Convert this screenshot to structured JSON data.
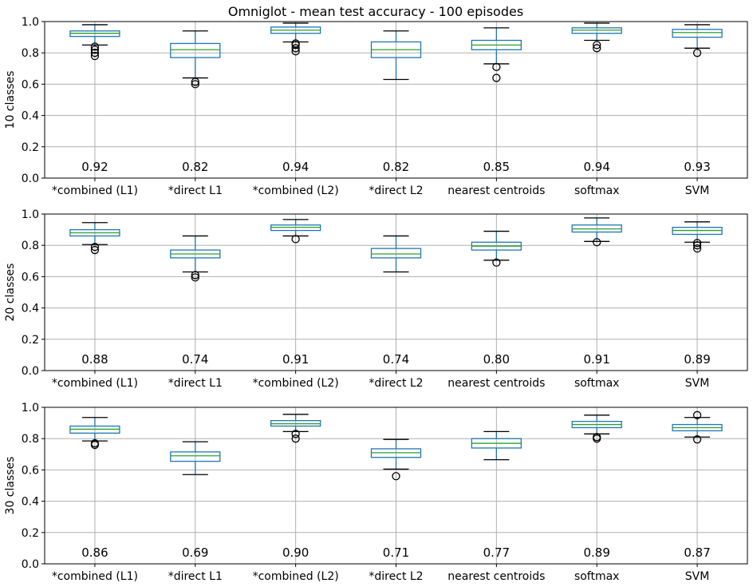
{
  "figure_title": "Omniglot - mean test accuracy - 100 episodes",
  "colors": {
    "box": "#1f77b4",
    "median": "#2ca02c",
    "grid": "#b0b0b0",
    "cap": "#000000",
    "flier": "#000000"
  },
  "chart_data": [
    {
      "type": "box",
      "ylabel": "10 classes",
      "ylim": [
        0.0,
        1.0
      ],
      "yticks": [
        "0.0",
        "0.2",
        "0.4",
        "0.6",
        "0.8",
        "1.0"
      ],
      "grid": true,
      "categories": [
        "*combined (L1)",
        "*direct L1",
        "*combined (L2)",
        "*direct L2",
        "nearest centroids",
        "softmax",
        "SVM"
      ],
      "means": [
        "0.92",
        "0.82",
        "0.94",
        "0.82",
        "0.85",
        "0.94",
        "0.93"
      ],
      "boxes": [
        {
          "whislo": 0.85,
          "q1": 0.905,
          "med": 0.925,
          "q3": 0.94,
          "whishi": 0.98,
          "fliers": [
            0.78,
            0.8,
            0.82,
            0.84
          ]
        },
        {
          "whislo": 0.64,
          "q1": 0.77,
          "med": 0.82,
          "q3": 0.86,
          "whishi": 0.94,
          "fliers": [
            0.6,
            0.615
          ]
        },
        {
          "whislo": 0.87,
          "q1": 0.925,
          "med": 0.945,
          "q3": 0.965,
          "whishi": 0.99,
          "fliers": [
            0.81,
            0.83,
            0.85,
            0.86
          ]
        },
        {
          "whislo": 0.63,
          "q1": 0.77,
          "med": 0.82,
          "q3": 0.87,
          "whishi": 0.94,
          "fliers": []
        },
        {
          "whislo": 0.73,
          "q1": 0.82,
          "med": 0.85,
          "q3": 0.88,
          "whishi": 0.96,
          "fliers": [
            0.64,
            0.71
          ]
        },
        {
          "whislo": 0.88,
          "q1": 0.925,
          "med": 0.945,
          "q3": 0.96,
          "whishi": 0.99,
          "fliers": [
            0.83,
            0.85
          ]
        },
        {
          "whislo": 0.83,
          "q1": 0.9,
          "med": 0.93,
          "q3": 0.95,
          "whishi": 0.98,
          "fliers": [
            0.8
          ]
        }
      ]
    },
    {
      "type": "box",
      "ylabel": "20 classes",
      "ylim": [
        0.0,
        1.0
      ],
      "yticks": [
        "0.0",
        "0.2",
        "0.4",
        "0.6",
        "0.8",
        "1.0"
      ],
      "grid": true,
      "categories": [
        "*combined (L1)",
        "*direct L1",
        "*combined (L2)",
        "*direct L2",
        "nearest centroids",
        "softmax",
        "SVM"
      ],
      "means": [
        "0.88",
        "0.74",
        "0.91",
        "0.74",
        "0.80",
        "0.91",
        "0.89"
      ],
      "boxes": [
        {
          "whislo": 0.805,
          "q1": 0.86,
          "med": 0.88,
          "q3": 0.9,
          "whishi": 0.945,
          "fliers": [
            0.77,
            0.79
          ]
        },
        {
          "whislo": 0.63,
          "q1": 0.72,
          "med": 0.745,
          "q3": 0.77,
          "whishi": 0.86,
          "fliers": [
            0.595,
            0.61
          ]
        },
        {
          "whislo": 0.86,
          "q1": 0.895,
          "med": 0.915,
          "q3": 0.93,
          "whishi": 0.965,
          "fliers": [
            0.84
          ]
        },
        {
          "whislo": 0.63,
          "q1": 0.72,
          "med": 0.745,
          "q3": 0.78,
          "whishi": 0.86,
          "fliers": []
        },
        {
          "whislo": 0.705,
          "q1": 0.77,
          "med": 0.795,
          "q3": 0.82,
          "whishi": 0.89,
          "fliers": [
            0.69
          ]
        },
        {
          "whislo": 0.825,
          "q1": 0.885,
          "med": 0.905,
          "q3": 0.93,
          "whishi": 0.975,
          "fliers": [
            0.82
          ]
        },
        {
          "whislo": 0.82,
          "q1": 0.87,
          "med": 0.895,
          "q3": 0.915,
          "whishi": 0.95,
          "fliers": [
            0.78,
            0.8,
            0.815
          ]
        }
      ]
    },
    {
      "type": "box",
      "ylabel": "30 classes",
      "ylim": [
        0.0,
        1.0
      ],
      "yticks": [
        "0.0",
        "0.2",
        "0.4",
        "0.6",
        "0.8",
        "1.0"
      ],
      "grid": true,
      "categories": [
        "*combined (L1)",
        "*direct L1",
        "*combined (L2)",
        "*direct L2",
        "nearest centroids",
        "softmax",
        "SVM"
      ],
      "means": [
        "0.86",
        "0.69",
        "0.90",
        "0.71",
        "0.77",
        "0.89",
        "0.87"
      ],
      "boxes": [
        {
          "whislo": 0.785,
          "q1": 0.835,
          "med": 0.86,
          "q3": 0.88,
          "whishi": 0.935,
          "fliers": [
            0.76,
            0.77
          ]
        },
        {
          "whislo": 0.57,
          "q1": 0.655,
          "med": 0.69,
          "q3": 0.715,
          "whishi": 0.78,
          "fliers": []
        },
        {
          "whislo": 0.845,
          "q1": 0.88,
          "med": 0.895,
          "q3": 0.915,
          "whishi": 0.955,
          "fliers": [
            0.8,
            0.83
          ]
        },
        {
          "whislo": 0.605,
          "q1": 0.68,
          "med": 0.71,
          "q3": 0.735,
          "whishi": 0.795,
          "fliers": [
            0.56
          ]
        },
        {
          "whislo": 0.665,
          "q1": 0.74,
          "med": 0.77,
          "q3": 0.8,
          "whishi": 0.845,
          "fliers": []
        },
        {
          "whislo": 0.83,
          "q1": 0.87,
          "med": 0.89,
          "q3": 0.91,
          "whishi": 0.95,
          "fliers": [
            0.8,
            0.81
          ]
        },
        {
          "whislo": 0.81,
          "q1": 0.85,
          "med": 0.87,
          "q3": 0.89,
          "whishi": 0.935,
          "fliers": [
            0.795,
            0.95
          ]
        }
      ]
    }
  ]
}
